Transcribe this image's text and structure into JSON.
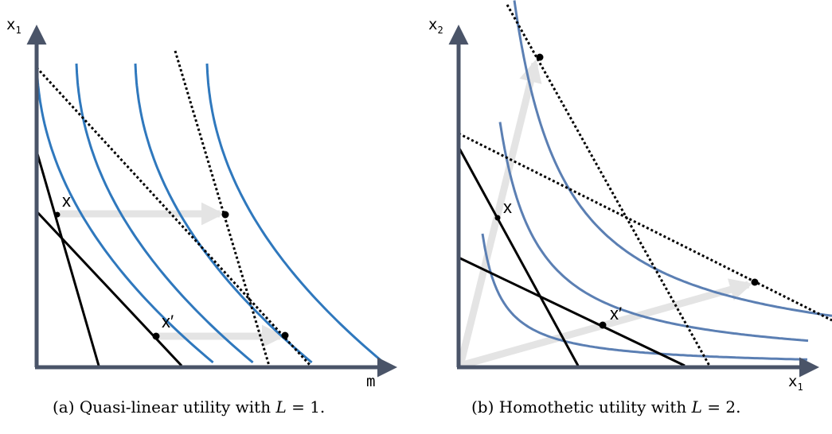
{
  "panel_a": {
    "y_axis": {
      "main": "x",
      "sub": "1"
    },
    "x_axis": {
      "main": "m",
      "sub": ""
    },
    "point_x": "x",
    "point_x_prime": "x′",
    "caption_prefix": "(a) Quasi-linear utility with ",
    "caption_var": "L",
    "caption_suffix": " = 1."
  },
  "panel_b": {
    "y_axis": {
      "main": "x",
      "sub": "2"
    },
    "x_axis": {
      "main": "x",
      "sub": "1"
    },
    "point_x": "x",
    "point_x_prime": "x′",
    "caption_prefix": "(b) Homothetic utility with ",
    "caption_var": "L",
    "caption_suffix": " = 2."
  },
  "colors": {
    "axis": "#4a5468",
    "curve_a": "#2f78bd",
    "curve_b": "#5b7fb3",
    "arrow": "#e4e4e4",
    "line": "#000000"
  }
}
